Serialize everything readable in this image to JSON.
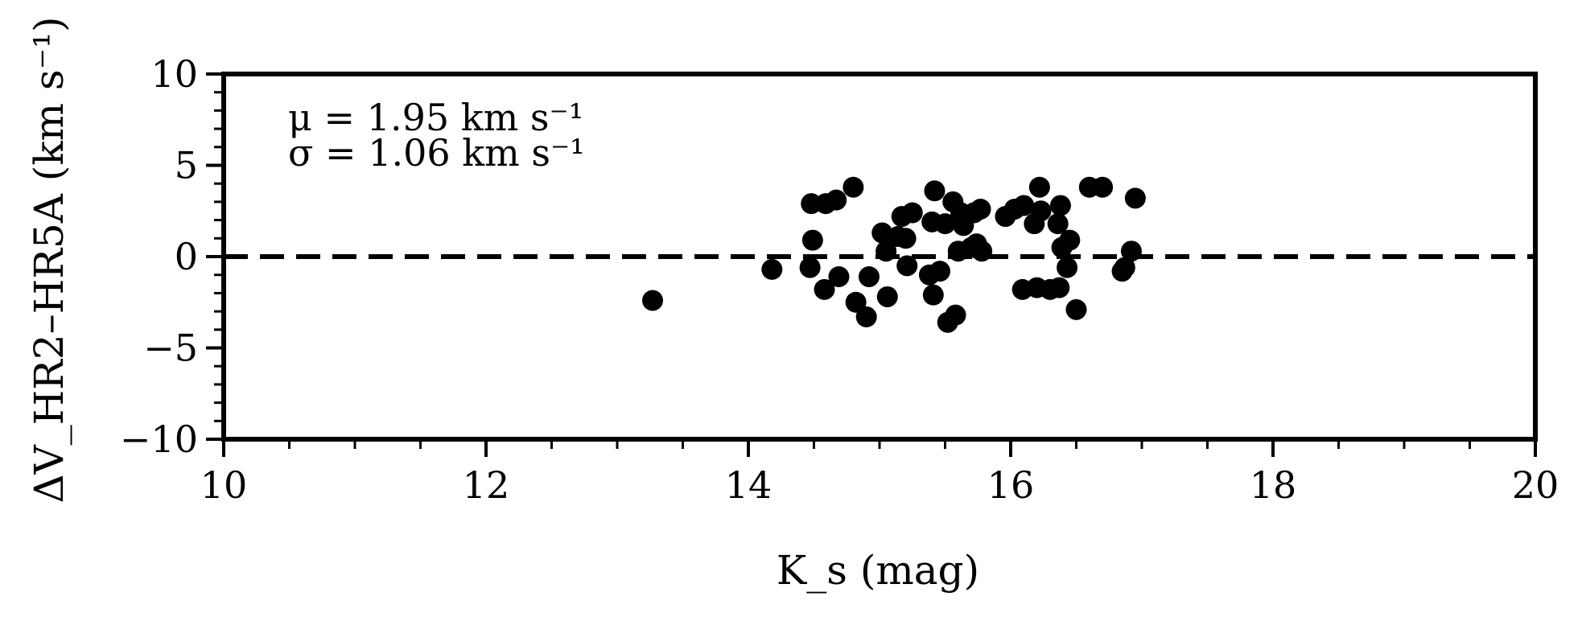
{
  "chart_data": {
    "type": "scatter",
    "title": "",
    "xlabel": "K_s (mag)",
    "ylabel": "ΔV_HR2–HR5A (km s⁻¹)",
    "xlim": [
      10,
      20
    ],
    "ylim": [
      -10,
      10
    ],
    "x_ticks": [
      10,
      12,
      14,
      16,
      18,
      20
    ],
    "y_ticks": [
      -10,
      -5,
      0,
      5,
      10
    ],
    "x_tick_labels": [
      "10",
      "12",
      "14",
      "16",
      "18",
      "20"
    ],
    "y_tick_labels": [
      "−10",
      "−5",
      "0",
      "5",
      "10"
    ],
    "reference_line": {
      "y": 0,
      "style": "dashed"
    },
    "annotations": [
      "μ = 1.95 km s⁻¹",
      "σ = 1.06 km s⁻¹"
    ],
    "grid": false,
    "marker_color": "#000000",
    "points": [
      {
        "x": 13.27,
        "y": -2.4
      },
      {
        "x": 14.18,
        "y": -0.7
      },
      {
        "x": 14.47,
        "y": -0.6
      },
      {
        "x": 14.48,
        "y": 2.9
      },
      {
        "x": 14.49,
        "y": 0.9
      },
      {
        "x": 14.58,
        "y": -1.8
      },
      {
        "x": 14.59,
        "y": 2.9
      },
      {
        "x": 14.67,
        "y": 3.1
      },
      {
        "x": 14.69,
        "y": -1.1
      },
      {
        "x": 14.8,
        "y": 3.8
      },
      {
        "x": 14.82,
        "y": -2.5
      },
      {
        "x": 14.9,
        "y": -3.3
      },
      {
        "x": 14.92,
        "y": -1.1
      },
      {
        "x": 15.02,
        "y": 1.3
      },
      {
        "x": 15.05,
        "y": 0.3
      },
      {
        "x": 15.06,
        "y": -2.2
      },
      {
        "x": 15.14,
        "y": 1.1
      },
      {
        "x": 15.17,
        "y": 2.2
      },
      {
        "x": 15.2,
        "y": 1.0
      },
      {
        "x": 15.21,
        "y": -0.5
      },
      {
        "x": 15.25,
        "y": 2.4
      },
      {
        "x": 15.38,
        "y": -1.0
      },
      {
        "x": 15.4,
        "y": 1.9
      },
      {
        "x": 15.41,
        "y": -2.1
      },
      {
        "x": 15.42,
        "y": 3.6
      },
      {
        "x": 15.46,
        "y": -0.8
      },
      {
        "x": 15.5,
        "y": 1.8
      },
      {
        "x": 15.52,
        "y": -3.6
      },
      {
        "x": 15.56,
        "y": 3.0
      },
      {
        "x": 15.58,
        "y": -3.2
      },
      {
        "x": 15.6,
        "y": 0.3
      },
      {
        "x": 15.62,
        "y": 2.4
      },
      {
        "x": 15.64,
        "y": 1.7
      },
      {
        "x": 15.7,
        "y": 0.5
      },
      {
        "x": 15.72,
        "y": 2.4
      },
      {
        "x": 15.74,
        "y": 0.7
      },
      {
        "x": 15.77,
        "y": 2.6
      },
      {
        "x": 15.78,
        "y": 0.3
      },
      {
        "x": 15.96,
        "y": 2.2
      },
      {
        "x": 16.03,
        "y": 2.6
      },
      {
        "x": 16.09,
        "y": -1.8
      },
      {
        "x": 16.1,
        "y": 2.8
      },
      {
        "x": 16.18,
        "y": 1.8
      },
      {
        "x": 16.2,
        "y": -1.7
      },
      {
        "x": 16.22,
        "y": 3.8
      },
      {
        "x": 16.23,
        "y": 2.5
      },
      {
        "x": 16.3,
        "y": -1.8
      },
      {
        "x": 16.36,
        "y": 1.8
      },
      {
        "x": 16.37,
        "y": -1.7
      },
      {
        "x": 16.38,
        "y": 2.8
      },
      {
        "x": 16.39,
        "y": 0.5
      },
      {
        "x": 16.43,
        "y": -0.6
      },
      {
        "x": 16.45,
        "y": 0.9
      },
      {
        "x": 16.5,
        "y": -2.9
      },
      {
        "x": 16.6,
        "y": 3.8
      },
      {
        "x": 16.7,
        "y": 3.8
      },
      {
        "x": 16.85,
        "y": -0.8
      },
      {
        "x": 16.87,
        "y": -0.6
      },
      {
        "x": 16.92,
        "y": 0.3
      },
      {
        "x": 16.95,
        "y": 3.2
      }
    ]
  }
}
